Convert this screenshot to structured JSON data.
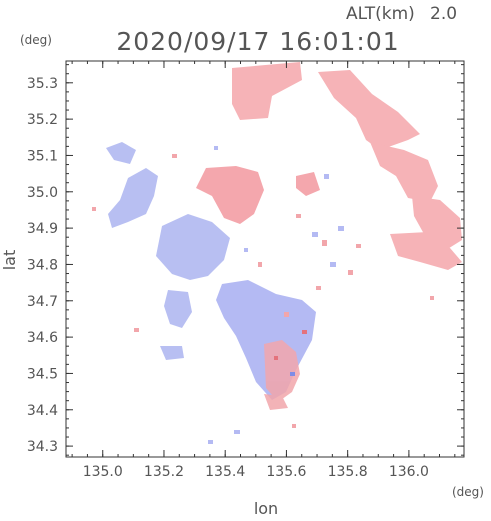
{
  "header": {
    "altitude_label": "ALT(km)",
    "altitude_value": "2.0",
    "timestamp": "2020/09/17 16:01:01"
  },
  "axes": {
    "y_unit": "(deg)",
    "x_unit": "(deg)",
    "ylabel": "lat",
    "xlabel": "lon",
    "xlim": [
      134.88,
      136.18
    ],
    "ylim": [
      34.27,
      35.36
    ],
    "x_ticks": [
      {
        "value": 135.0,
        "label": "135.0"
      },
      {
        "value": 135.2,
        "label": "135.2"
      },
      {
        "value": 135.4,
        "label": "135.4"
      },
      {
        "value": 135.6,
        "label": "135.6"
      },
      {
        "value": 135.8,
        "label": "135.8"
      },
      {
        "value": 136.0,
        "label": "136.0"
      }
    ],
    "y_ticks": [
      {
        "value": 34.3,
        "label": "34.3"
      },
      {
        "value": 34.4,
        "label": "34.4"
      },
      {
        "value": 34.5,
        "label": "34.5"
      },
      {
        "value": 34.6,
        "label": "34.6"
      },
      {
        "value": 34.7,
        "label": "34.7"
      },
      {
        "value": 34.8,
        "label": "34.8"
      },
      {
        "value": 34.9,
        "label": "34.9"
      },
      {
        "value": 35.0,
        "label": "35.0"
      },
      {
        "value": 35.1,
        "label": "35.1"
      },
      {
        "value": 35.2,
        "label": "35.2"
      },
      {
        "value": 35.3,
        "label": "35.3"
      }
    ]
  },
  "colors": {
    "approaching": "#a9b4f2",
    "receding": "#f5a9ad",
    "frame": "#333333",
    "text": "#555555"
  }
}
